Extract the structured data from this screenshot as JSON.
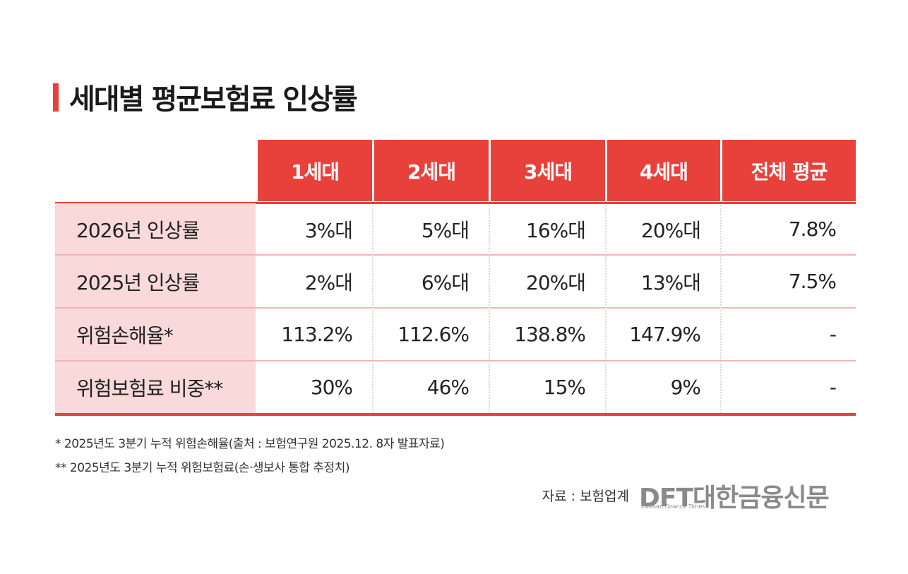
{
  "header": {
    "title": "세대별 평균보험료 인상률"
  },
  "table": {
    "columns": [
      "1세대",
      "2세대",
      "3세대",
      "4세대",
      "전체 평균"
    ],
    "rows": [
      [
        "2026년 인상률",
        "3%대",
        "5%대",
        "16%대",
        "20%대",
        "7.8%"
      ],
      [
        "2025년 인상률",
        "2%대",
        "6%대",
        "20%대",
        "13%대",
        "7.5%"
      ],
      [
        "위험손해율*",
        "113.2%",
        "112.6%",
        "138.8%",
        "147.9%",
        "-"
      ],
      [
        "위험보험료 비중**",
        "30%",
        "46%",
        "15%",
        "9%",
        "-"
      ]
    ]
  },
  "notes": [
    "* 2025년도 3분기 누적 위험손해율(출처 : 보험연구원 2025.12. 8자 발표자료)",
    "** 2025년도 3분기 누적 위험보험료(손·생보사 통합 추정치)"
  ],
  "source": "자료 : 보험업계",
  "logo": {
    "name": "DFT대한금융신문",
    "subtitle": "Daehan Finance Times"
  }
}
